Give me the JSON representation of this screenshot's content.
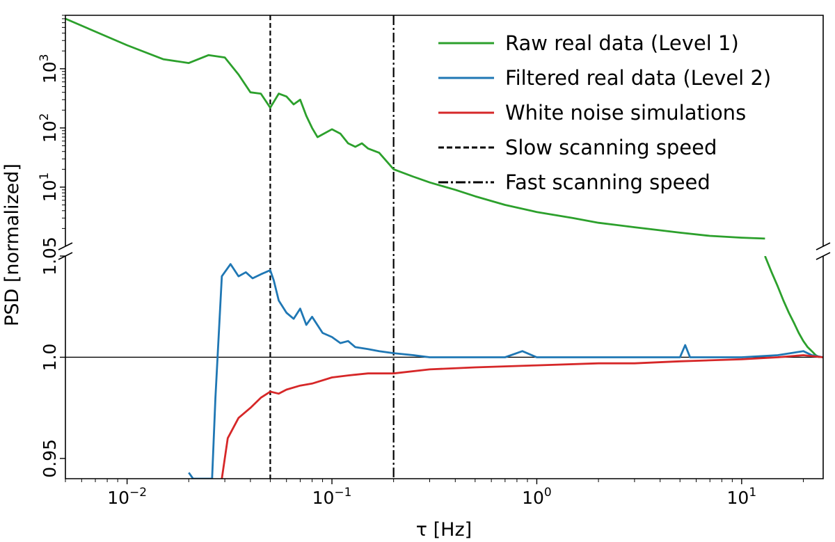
{
  "chart_data": {
    "type": "line",
    "xlabel": "τ [Hz]",
    "ylabel": "PSD [normalized]",
    "xscale": "log",
    "xlim": [
      0.005,
      25
    ],
    "x_ticks": [
      {
        "value": 0.01,
        "base": "10",
        "exp": "−2"
      },
      {
        "value": 0.1,
        "base": "10",
        "exp": "−1"
      },
      {
        "value": 1,
        "base": "10",
        "exp": "0"
      },
      {
        "value": 10,
        "base": "10",
        "exp": "1"
      }
    ],
    "top_panel": {
      "yscale": "log",
      "ylim": [
        1,
        8000
      ],
      "y_ticks": [
        {
          "value": 10,
          "base": "10",
          "exp": "1"
        },
        {
          "value": 100,
          "base": "10",
          "exp": "2"
        },
        {
          "value": 1000,
          "base": "10",
          "exp": "3"
        }
      ]
    },
    "bottom_panel": {
      "yscale": "linear",
      "ylim": [
        0.94,
        1.05
      ],
      "y_ticks": [
        {
          "value": 0.95,
          "label": "0.95"
        },
        {
          "value": 1.0,
          "label": "1.0"
        },
        {
          "value": 1.05,
          "label": "1.05"
        }
      ],
      "reference_line": 1.0
    },
    "vlines": [
      {
        "x": 0.05,
        "style": "dashed",
        "name": "Slow scanning speed"
      },
      {
        "x": 0.2,
        "style": "dashdot",
        "name": "Fast scanning speed"
      }
    ],
    "legend_position": "top-right",
    "series": [
      {
        "name": "Raw real data (Level 1)",
        "color": "#2ca02c",
        "panel": "top",
        "points": [
          [
            0.005,
            7000
          ],
          [
            0.01,
            2500
          ],
          [
            0.015,
            1450
          ],
          [
            0.02,
            1250
          ],
          [
            0.025,
            1700
          ],
          [
            0.03,
            1550
          ],
          [
            0.035,
            800
          ],
          [
            0.04,
            400
          ],
          [
            0.045,
            380
          ],
          [
            0.05,
            220
          ],
          [
            0.055,
            380
          ],
          [
            0.06,
            340
          ],
          [
            0.065,
            250
          ],
          [
            0.07,
            300
          ],
          [
            0.075,
            160
          ],
          [
            0.08,
            100
          ],
          [
            0.085,
            70
          ],
          [
            0.09,
            78
          ],
          [
            0.1,
            95
          ],
          [
            0.11,
            80
          ],
          [
            0.12,
            55
          ],
          [
            0.13,
            48
          ],
          [
            0.14,
            55
          ],
          [
            0.15,
            45
          ],
          [
            0.17,
            38
          ],
          [
            0.2,
            20
          ],
          [
            0.25,
            15
          ],
          [
            0.3,
            12
          ],
          [
            0.4,
            9
          ],
          [
            0.5,
            7
          ],
          [
            0.7,
            5
          ],
          [
            1,
            3.8
          ],
          [
            1.5,
            3
          ],
          [
            2,
            2.5
          ],
          [
            3,
            2.1
          ],
          [
            5,
            1.7
          ],
          [
            7,
            1.5
          ],
          [
            10,
            1.4
          ],
          [
            13,
            1.35
          ]
        ]
      },
      {
        "name": "Raw real data (Level 1)",
        "color": "#2ca02c",
        "panel": "bottom",
        "points": [
          [
            13,
            1.05
          ],
          [
            14,
            1.042
          ],
          [
            15,
            1.035
          ],
          [
            16,
            1.028
          ],
          [
            17,
            1.022
          ],
          [
            18,
            1.017
          ],
          [
            19,
            1.012
          ],
          [
            20,
            1.008
          ],
          [
            21,
            1.005
          ],
          [
            22,
            1.003
          ],
          [
            23,
            1.001
          ],
          [
            24,
            1.0
          ]
        ]
      },
      {
        "name": "Filtered real data (Level 2)",
        "color": "#1f77b4",
        "panel": "bottom",
        "points": [
          [
            0.02,
            0.943
          ],
          [
            0.021,
            0.94
          ],
          [
            0.026,
            0.94
          ],
          [
            0.027,
            0.98
          ],
          [
            0.029,
            1.04
          ],
          [
            0.032,
            1.046
          ],
          [
            0.035,
            1.04
          ],
          [
            0.038,
            1.042
          ],
          [
            0.041,
            1.039
          ],
          [
            0.045,
            1.041
          ],
          [
            0.05,
            1.043
          ],
          [
            0.052,
            1.038
          ],
          [
            0.055,
            1.028
          ],
          [
            0.06,
            1.022
          ],
          [
            0.065,
            1.019
          ],
          [
            0.07,
            1.024
          ],
          [
            0.075,
            1.016
          ],
          [
            0.08,
            1.02
          ],
          [
            0.09,
            1.012
          ],
          [
            0.1,
            1.01
          ],
          [
            0.11,
            1.007
          ],
          [
            0.12,
            1.008
          ],
          [
            0.13,
            1.005
          ],
          [
            0.15,
            1.004
          ],
          [
            0.17,
            1.003
          ],
          [
            0.2,
            1.002
          ],
          [
            0.25,
            1.001
          ],
          [
            0.3,
            1.0
          ],
          [
            0.5,
            1.0
          ],
          [
            0.7,
            1.0
          ],
          [
            0.85,
            1.003
          ],
          [
            1,
            1.0
          ],
          [
            2,
            1.0
          ],
          [
            3,
            1.0
          ],
          [
            4,
            1.0
          ],
          [
            5,
            1.0
          ],
          [
            5.3,
            1.006
          ],
          [
            5.6,
            1.0
          ],
          [
            10,
            1.0
          ],
          [
            15,
            1.001
          ],
          [
            20,
            1.003
          ],
          [
            22,
            1.001
          ],
          [
            25,
            1.0
          ]
        ]
      },
      {
        "name": "White noise simulations",
        "color": "#d62728",
        "panel": "bottom",
        "points": [
          [
            0.029,
            0.94
          ],
          [
            0.031,
            0.96
          ],
          [
            0.035,
            0.97
          ],
          [
            0.04,
            0.975
          ],
          [
            0.045,
            0.98
          ],
          [
            0.05,
            0.983
          ],
          [
            0.055,
            0.982
          ],
          [
            0.06,
            0.984
          ],
          [
            0.07,
            0.986
          ],
          [
            0.08,
            0.987
          ],
          [
            0.1,
            0.99
          ],
          [
            0.12,
            0.991
          ],
          [
            0.15,
            0.992
          ],
          [
            0.2,
            0.992
          ],
          [
            0.3,
            0.994
          ],
          [
            0.5,
            0.995
          ],
          [
            1,
            0.996
          ],
          [
            2,
            0.997
          ],
          [
            3,
            0.997
          ],
          [
            5,
            0.998
          ],
          [
            10,
            0.999
          ],
          [
            15,
            1.0
          ],
          [
            20,
            1.001
          ],
          [
            25,
            1.0
          ]
        ]
      }
    ],
    "legend": [
      {
        "label": "Raw real data (Level 1)",
        "color": "#2ca02c",
        "dash": "solid"
      },
      {
        "label": "Filtered real data (Level 2)",
        "color": "#1f77b4",
        "dash": "solid"
      },
      {
        "label": "White noise simulations",
        "color": "#d62728",
        "dash": "solid"
      },
      {
        "label": "Slow scanning speed",
        "color": "#000000",
        "dash": "dashed"
      },
      {
        "label": "Fast scanning speed",
        "color": "#000000",
        "dash": "dashdot"
      }
    ]
  }
}
